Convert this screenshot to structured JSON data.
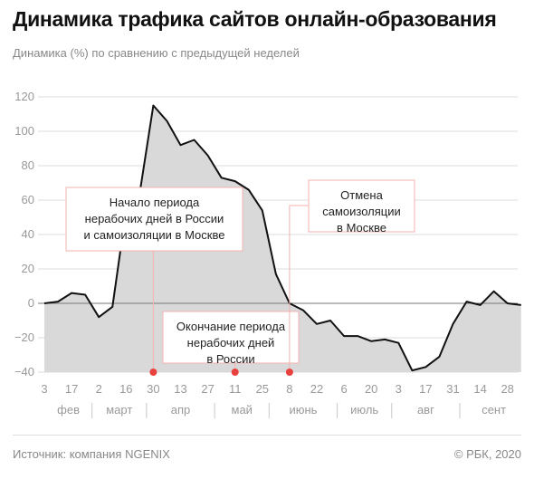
{
  "header": {
    "title": "Динамика трафика сайтов онлайн-образования",
    "subtitle": "Динамика (%) по сравнению с предыдущей неделей"
  },
  "footer": {
    "source": "Источник: компания NGENIX",
    "copyright": "© РБК, 2020"
  },
  "colors": {
    "area_fill": "#d9d9d9",
    "line": "#111111",
    "grid": "#dedede",
    "axis_zero": "#777777",
    "accent": "#e8413e",
    "callout_border": "#f2b3b2"
  },
  "chart_data": {
    "type": "area",
    "title": "Динамика трафика сайтов онлайн-образования",
    "ylabel": "Динамика (%) по сравнению с предыдущей неделей",
    "ylim": [
      -40,
      125
    ],
    "yticks": [
      -40,
      -20,
      0,
      20,
      40,
      60,
      80,
      100,
      120
    ],
    "grid": true,
    "x_tick_labels": [
      "3",
      "17",
      "2",
      "16",
      "30",
      "13",
      "27",
      "11",
      "25",
      "8",
      "22",
      "6",
      "20",
      "3",
      "17",
      "31",
      "14",
      "28"
    ],
    "months": [
      "фев",
      "март",
      "апр",
      "май",
      "июнь",
      "июль",
      "авг",
      "сент"
    ],
    "series": [
      {
        "x": [
          "3 фев",
          "10 фев",
          "17 фев",
          "24 фев",
          "2 мар",
          "9 мар",
          "16 мар",
          "23 мар",
          "30 мар",
          "6 апр",
          "13 апр",
          "20 апр",
          "27 апр",
          "4 мая",
          "11 мая",
          "18 мая",
          "25 мая",
          "1 июн",
          "8 июн",
          "15 июн",
          "22 июн",
          "29 июн",
          "6 июл",
          "13 июл",
          "20 июл",
          "27 июл",
          "3 авг",
          "10 авг",
          "17 авг",
          "24 авг",
          "31 авг",
          "7 сен",
          "14 сен",
          "21 сен",
          "28 сен",
          "5 окт"
        ],
        "values": [
          0,
          1,
          6,
          5,
          -8,
          -2,
          54,
          64,
          115,
          106,
          92,
          95,
          86,
          73,
          71,
          66,
          54,
          17,
          0,
          -4,
          -12,
          -10,
          -19,
          -19,
          -22,
          -21,
          -23,
          -39,
          -37,
          -31,
          -12,
          1,
          -1,
          7,
          0,
          -1
        ]
      }
    ],
    "annotations": [
      {
        "lines": [
          "Начало периода",
          "нерабочих дней в России",
          "и самоизоляции в Москве"
        ],
        "x": "30 мар"
      },
      {
        "lines": [
          "Окончание периода",
          "нерабочих дней",
          "в России"
        ],
        "x": "11 мая"
      },
      {
        "lines": [
          "Отмена",
          "самоизоляции",
          "в Москве"
        ],
        "x": "8 июн"
      }
    ]
  }
}
